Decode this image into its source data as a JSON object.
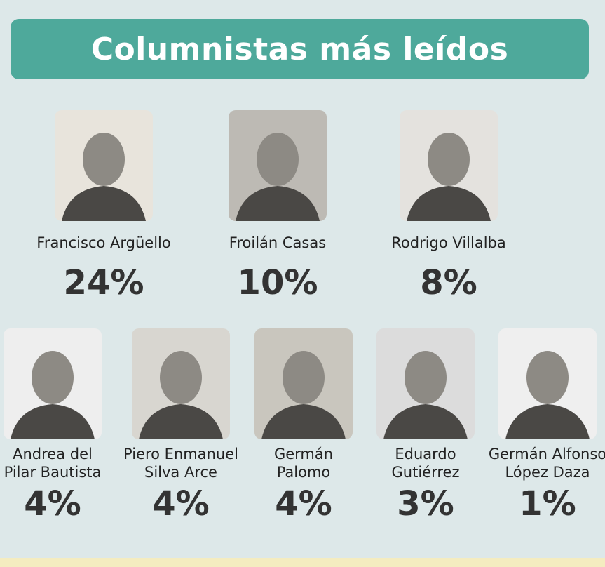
{
  "title": "Columnistas más leídos",
  "columnists": [
    {
      "name": [
        "Francisco Argüello"
      ],
      "percent": "24%"
    },
    {
      "name": [
        "Froilán Casas"
      ],
      "percent": "10%"
    },
    {
      "name": [
        "Rodrigo Villalba"
      ],
      "percent": "8%"
    },
    {
      "name": [
        "Andrea del",
        "Pilar Bautista"
      ],
      "percent": "4%"
    },
    {
      "name": [
        "Piero Enmanuel",
        "Silva Arce"
      ],
      "percent": "4%"
    },
    {
      "name": [
        "Germán",
        "Palomo"
      ],
      "percent": "4%"
    },
    {
      "name": [
        "Eduardo",
        "Gutiérrez"
      ],
      "percent": "3%"
    },
    {
      "name": [
        "Germán Alfonso",
        "López Daza"
      ],
      "percent": "1%"
    }
  ]
}
